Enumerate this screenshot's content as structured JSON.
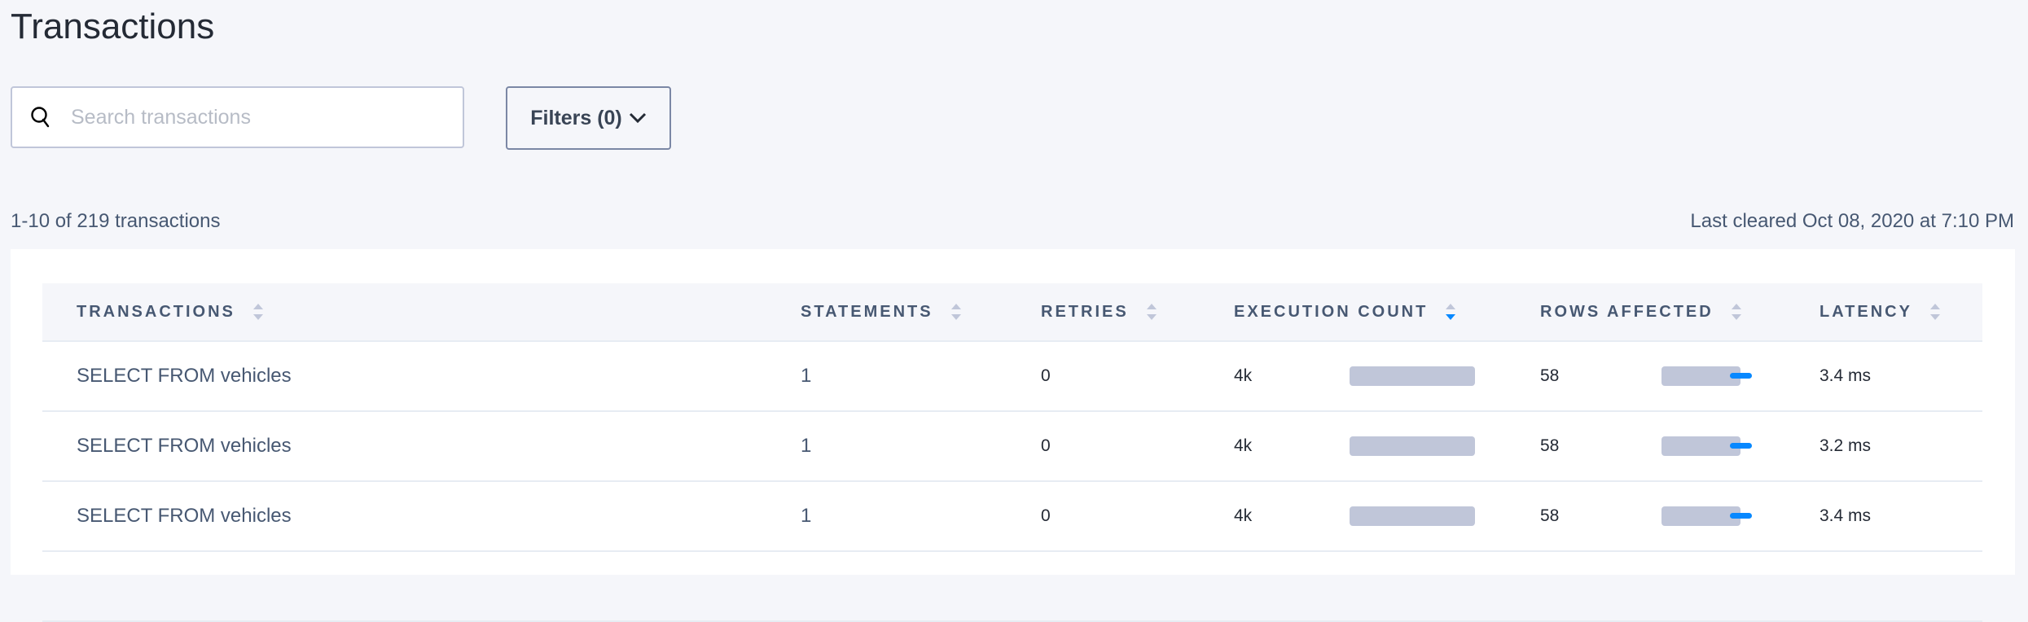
{
  "page": {
    "title": "Transactions"
  },
  "search": {
    "placeholder": "Search transactions",
    "value": ""
  },
  "filters": {
    "label": "Filters (0)"
  },
  "summary": {
    "count_text": "1-10 of 219 transactions",
    "last_cleared": "Last cleared Oct 08, 2020 at 7:10 PM"
  },
  "table": {
    "columns": [
      "TRANSACTIONS",
      "STATEMENTS",
      "RETRIES",
      "EXECUTION COUNT",
      "ROWS AFFECTED",
      "LATENCY"
    ],
    "sorted_column": "EXECUTION COUNT",
    "sort_direction": "descending",
    "rows": [
      {
        "transaction": "SELECT FROM vehicles",
        "statements": "1",
        "retries": "0",
        "execution_count": "4k",
        "rows_affected": "58",
        "latency": "3.4 ms"
      },
      {
        "transaction": "SELECT FROM vehicles",
        "statements": "1",
        "retries": "0",
        "execution_count": "4k",
        "rows_affected": "58",
        "latency": "3.2 ms"
      },
      {
        "transaction": "SELECT FROM vehicles",
        "statements": "1",
        "retries": "0",
        "execution_count": "4k",
        "rows_affected": "58",
        "latency": "3.4 ms"
      },
      {
        "transaction": "",
        "statements": "",
        "retries": "",
        "execution_count": "",
        "rows_affected": "",
        "latency": ""
      }
    ]
  },
  "colors": {
    "accent": "#0788ff",
    "bar": "#c0c6d9",
    "text": "#475872",
    "background": "#f5f6fa"
  }
}
